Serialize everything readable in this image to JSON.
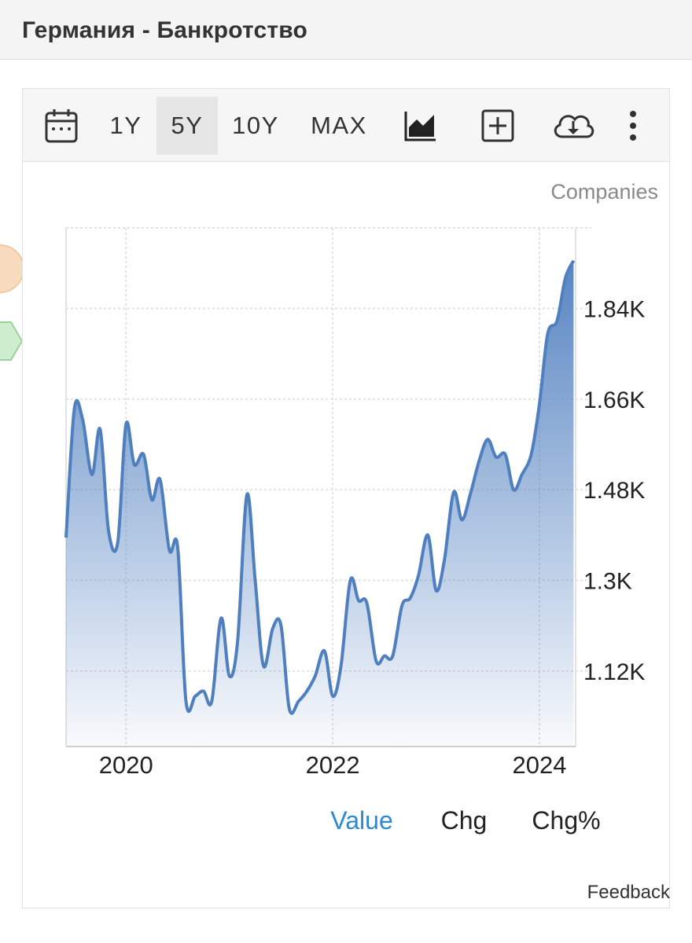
{
  "header": {
    "title": "Германия - Банкротство"
  },
  "toolbar": {
    "ranges": [
      {
        "id": "1y",
        "label": "1Y",
        "active": false
      },
      {
        "id": "5y",
        "label": "5Y",
        "active": true
      },
      {
        "id": "10y",
        "label": "10Y",
        "active": false
      },
      {
        "id": "max",
        "label": "MAX",
        "active": false
      }
    ],
    "icons": [
      "calendar-icon",
      "area-chart-icon",
      "add-icon",
      "download-cloud-icon",
      "more-vertical-icon"
    ]
  },
  "unit_label": "Companies",
  "legend": {
    "value": "Value",
    "chg": "Chg",
    "chgp": "Chg%"
  },
  "feedback": "Feedback",
  "colors": {
    "line": "#4f7fbf",
    "legend_active": "#2a8ad4",
    "grid": "#e2e2e2"
  },
  "chart_data": {
    "type": "area",
    "ylabel": "Companies",
    "ylim": [
      970,
      2000
    ],
    "yticks": [
      1120,
      1300,
      1480,
      1660,
      1840
    ],
    "ytick_labels": [
      "1.12K",
      "1.3K",
      "1.48K",
      "1.66K",
      "1.84K"
    ],
    "xlim": [
      2019.42,
      2024.35
    ],
    "xticks": [
      2020,
      2022,
      2024
    ],
    "xtick_labels": [
      "2020",
      "2022",
      "2024"
    ],
    "grid": true,
    "series": [
      {
        "x": [
          2019.42,
          2019.5,
          2019.58,
          2019.67,
          2019.75,
          2019.83,
          2019.92,
          2020.0,
          2020.08,
          2020.17,
          2020.25,
          2020.33,
          2020.42,
          2020.5,
          2020.58,
          2020.67,
          2020.75,
          2020.83,
          2020.92,
          2021.0,
          2021.08,
          2021.17,
          2021.25,
          2021.33,
          2021.42,
          2021.5,
          2021.58,
          2021.67,
          2021.75,
          2021.83,
          2021.92,
          2022.0,
          2022.08,
          2022.17,
          2022.25,
          2022.33,
          2022.42,
          2022.5,
          2022.58,
          2022.67,
          2022.75,
          2022.83,
          2022.92,
          2023.0,
          2023.08,
          2023.17,
          2023.25,
          2023.33,
          2023.42,
          2023.5,
          2023.58,
          2023.67,
          2023.75,
          2023.83,
          2023.92,
          2024.0,
          2024.08,
          2024.17,
          2024.25,
          2024.33
        ],
        "values": [
          1385,
          1640,
          1620,
          1510,
          1600,
          1400,
          1375,
          1610,
          1530,
          1550,
          1460,
          1500,
          1360,
          1365,
          1060,
          1070,
          1080,
          1060,
          1225,
          1110,
          1180,
          1470,
          1300,
          1130,
          1205,
          1210,
          1045,
          1060,
          1080,
          1110,
          1160,
          1070,
          1130,
          1300,
          1260,
          1255,
          1140,
          1150,
          1150,
          1250,
          1265,
          1310,
          1390,
          1280,
          1340,
          1475,
          1420,
          1470,
          1540,
          1580,
          1545,
          1550,
          1480,
          1510,
          1550,
          1650,
          1790,
          1815,
          1900,
          1935
        ]
      }
    ],
    "legend": [
      "Value",
      "Chg",
      "Chg%"
    ]
  }
}
